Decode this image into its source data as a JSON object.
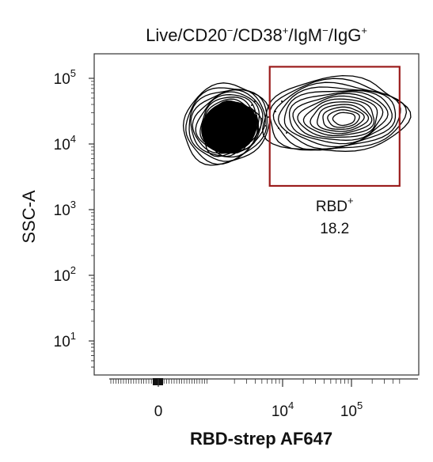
{
  "chart_data": {
    "type": "contour",
    "title": {
      "base": "Live/CD20",
      "parts": [
        {
          "sup": "−",
          "text": "/CD38"
        },
        {
          "sup": "+",
          "text": "/IgM"
        },
        {
          "sup": "−",
          "text": "/IgG"
        },
        {
          "sup": "+",
          "text": ""
        }
      ]
    },
    "xlabel": "RBD-strep AF647",
    "ylabel": "SSC-A",
    "x_scale": "biexponential",
    "y_scale": "log",
    "x_ticks": [
      {
        "value": 0,
        "base": "0",
        "exp": ""
      },
      {
        "value": 10000,
        "base": "10",
        "exp": "4"
      },
      {
        "value": 100000,
        "base": "10",
        "exp": "5"
      }
    ],
    "y_ticks": [
      {
        "value": 100000,
        "base": "10",
        "exp": "5"
      },
      {
        "value": 10000,
        "base": "10",
        "exp": "4"
      },
      {
        "value": 1000,
        "base": "10",
        "exp": "3"
      },
      {
        "value": 100,
        "base": "10",
        "exp": "2"
      },
      {
        "value": 10,
        "base": "10",
        "exp": "1"
      }
    ],
    "gate": {
      "name": "RBD",
      "sup": "+",
      "percent": "18.2",
      "x_range": [
        6500,
        500000
      ],
      "y_range": [
        2300,
        150000
      ],
      "color": "#9b1c1c"
    },
    "populations": [
      {
        "name": "",
        "center_x": 1500,
        "center_y": 20000,
        "levels": 16
      },
      {
        "name": "",
        "center_x": 80000,
        "center_y": 24000,
        "levels": 14
      }
    ],
    "colors": {
      "contour": "#000000",
      "gate": "#9b1c1c",
      "axis": "#111111"
    }
  }
}
